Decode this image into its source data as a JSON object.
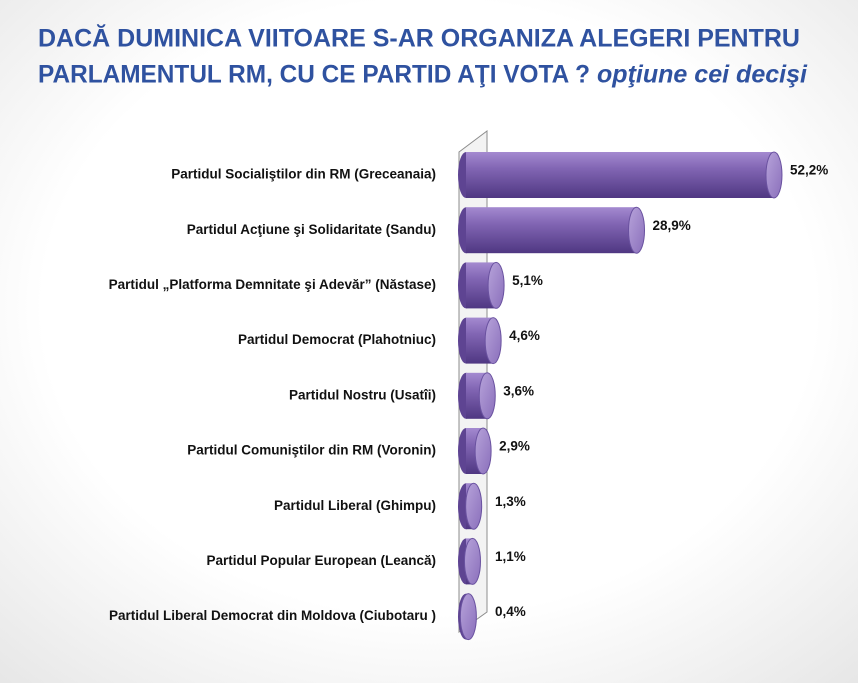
{
  "chart_data": {
    "type": "bar",
    "orientation": "horizontal",
    "title": [
      "DACĂ  DUMINICA VIITOARE S-AR ORGANIZA ALEGERI PENTRU",
      "PARLAMENTUL RM, CU CE PARTID AŢI VOTA ?"
    ],
    "subtitle": "opţiune  cei decişi",
    "categories": [
      "Partidul Socialiştilor din RM  (Greceanaia)",
      "Partidul Acţiune şi Solidaritate (Sandu)",
      "Partidul „Platforma Demnitate şi Adevăr” (Năstase)",
      "Partidul Democrat (Plahotniuc)",
      "Partidul Nostru  (Usatîi)",
      "Partidul Comuniştilor din RM  (Voronin)",
      "Partidul Liberal (Ghimpu)",
      "Partidul Popular European  (Leancă)",
      "Partidul Liberal Democrat din Moldova (Ciubotaru )"
    ],
    "values": [
      52.2,
      28.9,
      5.1,
      4.6,
      3.6,
      2.9,
      1.3,
      1.1,
      0.4
    ],
    "value_labels": [
      "52,2%",
      "28,9%",
      "5,1%",
      "4,6%",
      "3,6%",
      "2,9%",
      "1,3%",
      "1,1%",
      "0,4%"
    ],
    "color": "#7b5fab"
  }
}
